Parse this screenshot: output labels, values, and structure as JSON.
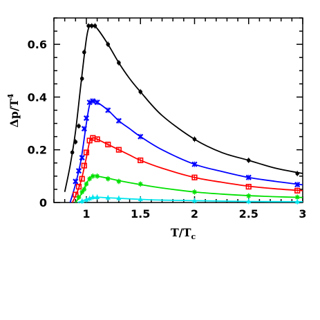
{
  "chart_data": {
    "type": "line",
    "xlabel": "T/T",
    "xlabel_sub": "c",
    "ylabel": "Δp/T",
    "ylabel_sup": "4",
    "xlim": [
      0.7,
      3.0
    ],
    "ylim": [
      0.0,
      0.7
    ],
    "x_ticks": [
      1,
      1.5,
      2,
      2.5,
      3
    ],
    "x_tick_labels": [
      "1",
      "1.5",
      "2",
      "2.5",
      "3"
    ],
    "y_ticks": [
      0,
      0.2,
      0.4,
      0.6
    ],
    "y_tick_labels": [
      "0",
      "0.2",
      "0.4",
      "0.6"
    ],
    "grid": false,
    "legend": "none",
    "series": [
      {
        "color": "#000000",
        "marker": "circle",
        "points": [
          [
            0.87,
            0.19
          ],
          [
            0.9,
            0.23
          ],
          [
            0.93,
            0.29
          ],
          [
            0.96,
            0.47
          ],
          [
            0.98,
            0.57
          ],
          [
            1.02,
            0.67
          ],
          [
            1.05,
            0.67
          ],
          [
            1.08,
            0.67
          ],
          [
            1.2,
            0.6
          ],
          [
            1.3,
            0.53
          ],
          [
            1.5,
            0.42
          ],
          [
            2.0,
            0.24
          ],
          [
            2.5,
            0.16
          ],
          [
            2.95,
            0.11
          ]
        ],
        "curve": [
          [
            0.8,
            0.04
          ],
          [
            0.85,
            0.14
          ],
          [
            0.9,
            0.27
          ],
          [
            0.95,
            0.45
          ],
          [
            1.0,
            0.62
          ],
          [
            1.03,
            0.67
          ],
          [
            1.06,
            0.67
          ],
          [
            1.1,
            0.66
          ],
          [
            1.2,
            0.6
          ],
          [
            1.3,
            0.53
          ],
          [
            1.4,
            0.47
          ],
          [
            1.5,
            0.42
          ],
          [
            1.7,
            0.33
          ],
          [
            2.0,
            0.24
          ],
          [
            2.25,
            0.19
          ],
          [
            2.5,
            0.16
          ],
          [
            2.75,
            0.13
          ],
          [
            3.0,
            0.11
          ]
        ]
      },
      {
        "color": "#0000ff",
        "marker": "x",
        "points": [
          [
            0.9,
            0.08
          ],
          [
            0.93,
            0.12
          ],
          [
            0.96,
            0.17
          ],
          [
            0.98,
            0.28
          ],
          [
            1.0,
            0.32
          ],
          [
            1.03,
            0.38
          ],
          [
            1.06,
            0.385
          ],
          [
            1.1,
            0.38
          ],
          [
            1.2,
            0.35
          ],
          [
            1.3,
            0.31
          ],
          [
            1.5,
            0.25
          ],
          [
            2.0,
            0.145
          ],
          [
            2.5,
            0.095
          ],
          [
            2.95,
            0.068
          ]
        ],
        "curve": [
          [
            0.85,
            0.0
          ],
          [
            0.9,
            0.07
          ],
          [
            0.95,
            0.16
          ],
          [
            1.0,
            0.3
          ],
          [
            1.03,
            0.37
          ],
          [
            1.06,
            0.385
          ],
          [
            1.1,
            0.38
          ],
          [
            1.2,
            0.35
          ],
          [
            1.3,
            0.31
          ],
          [
            1.4,
            0.28
          ],
          [
            1.5,
            0.25
          ],
          [
            1.7,
            0.2
          ],
          [
            2.0,
            0.145
          ],
          [
            2.25,
            0.118
          ],
          [
            2.5,
            0.095
          ],
          [
            2.75,
            0.08
          ],
          [
            3.0,
            0.067
          ]
        ]
      },
      {
        "color": "#ff0000",
        "marker": "square",
        "points": [
          [
            0.9,
            0.03
          ],
          [
            0.93,
            0.06
          ],
          [
            0.96,
            0.09
          ],
          [
            0.98,
            0.14
          ],
          [
            1.0,
            0.19
          ],
          [
            1.03,
            0.235
          ],
          [
            1.06,
            0.245
          ],
          [
            1.1,
            0.24
          ],
          [
            1.2,
            0.22
          ],
          [
            1.3,
            0.2
          ],
          [
            1.5,
            0.16
          ],
          [
            2.0,
            0.095
          ],
          [
            2.5,
            0.06
          ],
          [
            2.95,
            0.045
          ]
        ],
        "curve": [
          [
            0.87,
            0.0
          ],
          [
            0.9,
            0.025
          ],
          [
            0.95,
            0.08
          ],
          [
            1.0,
            0.17
          ],
          [
            1.03,
            0.23
          ],
          [
            1.06,
            0.245
          ],
          [
            1.1,
            0.24
          ],
          [
            1.2,
            0.22
          ],
          [
            1.3,
            0.2
          ],
          [
            1.4,
            0.18
          ],
          [
            1.5,
            0.16
          ],
          [
            1.7,
            0.13
          ],
          [
            2.0,
            0.095
          ],
          [
            2.25,
            0.077
          ],
          [
            2.5,
            0.062
          ],
          [
            2.75,
            0.052
          ],
          [
            3.0,
            0.045
          ]
        ]
      },
      {
        "color": "#00e000",
        "marker": "star",
        "points": [
          [
            0.93,
            0.02
          ],
          [
            0.96,
            0.04
          ],
          [
            0.98,
            0.05
          ],
          [
            1.0,
            0.07
          ],
          [
            1.03,
            0.09
          ],
          [
            1.06,
            0.1
          ],
          [
            1.1,
            0.1
          ],
          [
            1.2,
            0.09
          ],
          [
            1.3,
            0.08
          ],
          [
            1.5,
            0.07
          ],
          [
            2.0,
            0.04
          ],
          [
            2.5,
            0.025
          ],
          [
            2.95,
            0.02
          ]
        ],
        "curve": [
          [
            0.9,
            0.0
          ],
          [
            0.95,
            0.03
          ],
          [
            1.0,
            0.07
          ],
          [
            1.03,
            0.092
          ],
          [
            1.06,
            0.1
          ],
          [
            1.1,
            0.1
          ],
          [
            1.2,
            0.092
          ],
          [
            1.3,
            0.083
          ],
          [
            1.5,
            0.068
          ],
          [
            1.7,
            0.055
          ],
          [
            2.0,
            0.04
          ],
          [
            2.25,
            0.032
          ],
          [
            2.5,
            0.026
          ],
          [
            2.75,
            0.022
          ],
          [
            3.0,
            0.019
          ]
        ]
      },
      {
        "color": "#00e5ee",
        "marker": "triangle",
        "points": [
          [
            0.96,
            0.005
          ],
          [
            1.0,
            0.01
          ],
          [
            1.03,
            0.015
          ],
          [
            1.06,
            0.02
          ],
          [
            1.1,
            0.02
          ],
          [
            1.2,
            0.018
          ],
          [
            1.3,
            0.016
          ],
          [
            1.5,
            0.012
          ],
          [
            2.0,
            0.007
          ],
          [
            2.5,
            0.004
          ],
          [
            2.95,
            0.003
          ]
        ],
        "curve": [
          [
            0.92,
            0.0
          ],
          [
            0.96,
            0.006
          ],
          [
            1.0,
            0.012
          ],
          [
            1.05,
            0.019
          ],
          [
            1.1,
            0.02
          ],
          [
            1.2,
            0.018
          ],
          [
            1.3,
            0.016
          ],
          [
            1.5,
            0.012
          ],
          [
            1.7,
            0.009
          ],
          [
            2.0,
            0.007
          ],
          [
            2.5,
            0.004
          ],
          [
            3.0,
            0.003
          ]
        ]
      }
    ]
  }
}
